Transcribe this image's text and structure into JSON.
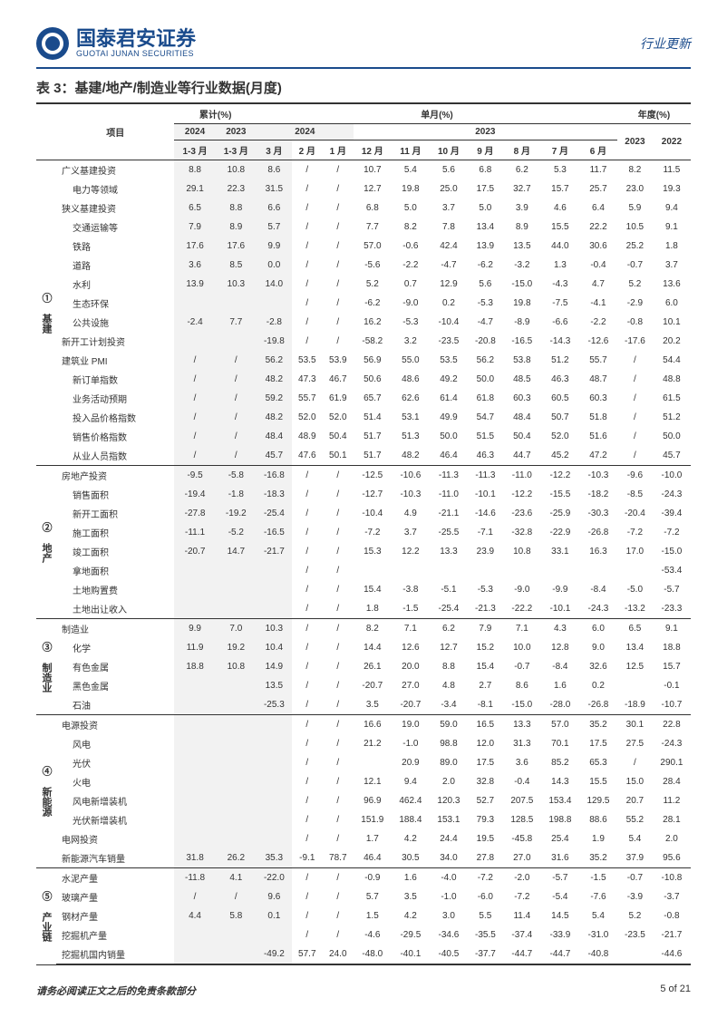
{
  "header": {
    "logo_cn": "国泰君安证券",
    "logo_en": "GUOTAI JUNAN SECURITIES",
    "doc_type": "行业更新"
  },
  "table_title": "表 3：基建/地产/制造业等行业数据(月度)",
  "columns": {
    "item": "项目",
    "cum": "累计(%)",
    "monthly": "单月(%)",
    "annual": "年度(%)",
    "y2024": "2024",
    "y2023": "2023",
    "y2022": "2022",
    "m1_3a": "1-3 月",
    "m1_3b": "1-3 月",
    "m3": "3 月",
    "m2": "2 月",
    "m1": "1 月",
    "m12": "12 月",
    "m11": "11 月",
    "m10": "10 月",
    "m9": "9 月",
    "m8": "8 月",
    "m7": "7 月",
    "m6": "6 月"
  },
  "sections": [
    {
      "num": "①",
      "name": "基建",
      "rows": [
        {
          "n": "广义基建投资",
          "v": [
            "8.8",
            "10.8",
            "8.6",
            "/",
            "/",
            "10.7",
            "5.4",
            "5.6",
            "6.8",
            "6.2",
            "5.3",
            "11.7",
            "8.2",
            "11.5"
          ]
        },
        {
          "n": "电力等领域",
          "indent": 1,
          "v": [
            "29.1",
            "22.3",
            "31.5",
            "/",
            "/",
            "12.7",
            "19.8",
            "25.0",
            "17.5",
            "32.7",
            "15.7",
            "25.7",
            "23.0",
            "19.3"
          ]
        },
        {
          "n": "狭义基建投资",
          "v": [
            "6.5",
            "8.8",
            "6.6",
            "/",
            "/",
            "6.8",
            "5.0",
            "3.7",
            "5.0",
            "3.9",
            "4.6",
            "6.4",
            "5.9",
            "9.4"
          ]
        },
        {
          "n": "交通运输等",
          "indent": 1,
          "v": [
            "7.9",
            "8.9",
            "5.7",
            "/",
            "/",
            "7.7",
            "8.2",
            "7.8",
            "13.4",
            "8.9",
            "15.5",
            "22.2",
            "10.5",
            "9.1"
          ]
        },
        {
          "n": "铁路",
          "indent": 1,
          "v": [
            "17.6",
            "17.6",
            "9.9",
            "/",
            "/",
            "57.0",
            "-0.6",
            "42.4",
            "13.9",
            "13.5",
            "44.0",
            "30.6",
            "25.2",
            "1.8"
          ]
        },
        {
          "n": "道路",
          "indent": 1,
          "v": [
            "3.6",
            "8.5",
            "0.0",
            "/",
            "/",
            "-5.6",
            "-2.2",
            "-4.7",
            "-6.2",
            "-3.2",
            "1.3",
            "-0.4",
            "-0.7",
            "3.7"
          ]
        },
        {
          "n": "水利",
          "indent": 1,
          "v": [
            "13.9",
            "10.3",
            "14.0",
            "/",
            "/",
            "5.2",
            "0.7",
            "12.9",
            "5.6",
            "-15.0",
            "-4.3",
            "4.7",
            "5.2",
            "13.6"
          ]
        },
        {
          "n": "生态环保",
          "indent": 1,
          "v": [
            "",
            "",
            "",
            "/",
            "/",
            "-6.2",
            "-9.0",
            "0.2",
            "-5.3",
            "19.8",
            "-7.5",
            "-4.1",
            "-2.9",
            "6.0"
          ]
        },
        {
          "n": "公共设施",
          "indent": 1,
          "v": [
            "-2.4",
            "7.7",
            "-2.8",
            "/",
            "/",
            "16.2",
            "-5.3",
            "-10.4",
            "-4.7",
            "-8.9",
            "-6.6",
            "-2.2",
            "-0.8",
            "10.1"
          ]
        },
        {
          "n": "新开工计划投资",
          "v": [
            "",
            "",
            "-19.8",
            "/",
            "/",
            "-58.2",
            "3.2",
            "-23.5",
            "-20.8",
            "-16.5",
            "-14.3",
            "-12.6",
            "-17.6",
            "20.2"
          ]
        },
        {
          "n": "建筑业 PMI",
          "v": [
            "/",
            "/",
            "56.2",
            "53.5",
            "53.9",
            "56.9",
            "55.0",
            "53.5",
            "56.2",
            "53.8",
            "51.2",
            "55.7",
            "/",
            "54.4"
          ]
        },
        {
          "n": "新订单指数",
          "indent": 1,
          "v": [
            "/",
            "/",
            "48.2",
            "47.3",
            "46.7",
            "50.6",
            "48.6",
            "49.2",
            "50.0",
            "48.5",
            "46.3",
            "48.7",
            "/",
            "48.8"
          ]
        },
        {
          "n": "业务活动预期",
          "indent": 1,
          "v": [
            "/",
            "/",
            "59.2",
            "55.7",
            "61.9",
            "65.7",
            "62.6",
            "61.4",
            "61.8",
            "60.3",
            "60.5",
            "60.3",
            "/",
            "61.5"
          ]
        },
        {
          "n": "投入品价格指数",
          "indent": 1,
          "v": [
            "/",
            "/",
            "48.2",
            "52.0",
            "52.0",
            "51.4",
            "53.1",
            "49.9",
            "54.7",
            "48.4",
            "50.7",
            "51.8",
            "/",
            "51.2"
          ]
        },
        {
          "n": "销售价格指数",
          "indent": 1,
          "v": [
            "/",
            "/",
            "48.4",
            "48.9",
            "50.4",
            "51.7",
            "51.3",
            "50.0",
            "51.5",
            "50.4",
            "52.0",
            "51.6",
            "/",
            "50.0"
          ]
        },
        {
          "n": "从业人员指数",
          "indent": 1,
          "v": [
            "/",
            "/",
            "45.7",
            "47.6",
            "50.1",
            "51.7",
            "48.2",
            "46.4",
            "46.3",
            "44.7",
            "45.2",
            "47.2",
            "/",
            "45.7"
          ]
        }
      ]
    },
    {
      "num": "②",
      "name": "地产",
      "rows": [
        {
          "n": "房地产投资",
          "v": [
            "-9.5",
            "-5.8",
            "-16.8",
            "/",
            "/",
            "-12.5",
            "-10.6",
            "-11.3",
            "-11.3",
            "-11.0",
            "-12.2",
            "-10.3",
            "-9.6",
            "-10.0"
          ]
        },
        {
          "n": "销售面积",
          "indent": 1,
          "v": [
            "-19.4",
            "-1.8",
            "-18.3",
            "/",
            "/",
            "-12.7",
            "-10.3",
            "-11.0",
            "-10.1",
            "-12.2",
            "-15.5",
            "-18.2",
            "-8.5",
            "-24.3"
          ]
        },
        {
          "n": "新开工面积",
          "indent": 1,
          "v": [
            "-27.8",
            "-19.2",
            "-25.4",
            "/",
            "/",
            "-10.4",
            "4.9",
            "-21.1",
            "-14.6",
            "-23.6",
            "-25.9",
            "-30.3",
            "-20.4",
            "-39.4"
          ]
        },
        {
          "n": "施工面积",
          "indent": 1,
          "v": [
            "-11.1",
            "-5.2",
            "-16.5",
            "/",
            "/",
            "-7.2",
            "3.7",
            "-25.5",
            "-7.1",
            "-32.8",
            "-22.9",
            "-26.8",
            "-7.2",
            "-7.2"
          ]
        },
        {
          "n": "竣工面积",
          "indent": 1,
          "v": [
            "-20.7",
            "14.7",
            "-21.7",
            "/",
            "/",
            "15.3",
            "12.2",
            "13.3",
            "23.9",
            "10.8",
            "33.1",
            "16.3",
            "17.0",
            "-15.0"
          ]
        },
        {
          "n": "拿地面积",
          "indent": 1,
          "v": [
            "",
            "",
            "",
            "/",
            "/",
            "",
            "",
            "",
            "",
            "",
            "",
            "",
            "",
            "-53.4"
          ]
        },
        {
          "n": "土地购置费",
          "indent": 1,
          "v": [
            "",
            "",
            "",
            "/",
            "/",
            "15.4",
            "-3.8",
            "-5.1",
            "-5.3",
            "-9.0",
            "-9.9",
            "-8.4",
            "-5.0",
            "-5.7"
          ]
        },
        {
          "n": "土地出让收入",
          "indent": 1,
          "v": [
            "",
            "",
            "",
            "/",
            "/",
            "1.8",
            "-1.5",
            "-25.4",
            "-21.3",
            "-22.2",
            "-10.1",
            "-24.3",
            "-13.2",
            "-23.3"
          ]
        }
      ]
    },
    {
      "num": "③",
      "name": "制造业",
      "rows": [
        {
          "n": "制造业",
          "v": [
            "9.9",
            "7.0",
            "10.3",
            "/",
            "/",
            "8.2",
            "7.1",
            "6.2",
            "7.9",
            "7.1",
            "4.3",
            "6.0",
            "6.5",
            "9.1"
          ]
        },
        {
          "n": "化学",
          "indent": 1,
          "v": [
            "11.9",
            "19.2",
            "10.4",
            "/",
            "/",
            "14.4",
            "12.6",
            "12.7",
            "15.2",
            "10.0",
            "12.8",
            "9.0",
            "13.4",
            "18.8"
          ]
        },
        {
          "n": "有色金属",
          "indent": 1,
          "v": [
            "18.8",
            "10.8",
            "14.9",
            "/",
            "/",
            "26.1",
            "20.0",
            "8.8",
            "15.4",
            "-0.7",
            "-8.4",
            "32.6",
            "12.5",
            "15.7"
          ]
        },
        {
          "n": "黑色金属",
          "indent": 1,
          "v": [
            "",
            "",
            "13.5",
            "/",
            "/",
            "-20.7",
            "27.0",
            "4.8",
            "2.7",
            "8.6",
            "1.6",
            "0.2",
            "",
            "-0.1"
          ]
        },
        {
          "n": "石油",
          "indent": 1,
          "v": [
            "",
            "",
            "-25.3",
            "/",
            "/",
            "3.5",
            "-20.7",
            "-3.4",
            "-8.1",
            "-15.0",
            "-28.0",
            "-26.8",
            "-18.9",
            "-10.7"
          ]
        }
      ]
    },
    {
      "num": "④",
      "name": "新能源",
      "rows": [
        {
          "n": "电源投资",
          "v": [
            "",
            "",
            "",
            "/",
            "/",
            "16.6",
            "19.0",
            "59.0",
            "16.5",
            "13.3",
            "57.0",
            "35.2",
            "30.1",
            "22.8"
          ]
        },
        {
          "n": "风电",
          "indent": 1,
          "v": [
            "",
            "",
            "",
            "/",
            "/",
            "21.2",
            "-1.0",
            "98.8",
            "12.0",
            "31.3",
            "70.1",
            "17.5",
            "27.5",
            "-24.3"
          ]
        },
        {
          "n": "光伏",
          "indent": 1,
          "v": [
            "",
            "",
            "",
            "/",
            "/",
            "",
            "20.9",
            "89.0",
            "17.5",
            "3.6",
            "85.2",
            "65.3",
            "/",
            "290.1"
          ]
        },
        {
          "n": "火电",
          "indent": 1,
          "v": [
            "",
            "",
            "",
            "/",
            "/",
            "12.1",
            "9.4",
            "2.0",
            "32.8",
            "-0.4",
            "14.3",
            "15.5",
            "15.0",
            "28.4"
          ]
        },
        {
          "n": "风电新增装机",
          "indent": 1,
          "v": [
            "",
            "",
            "",
            "/",
            "/",
            "96.9",
            "462.4",
            "120.3",
            "52.7",
            "207.5",
            "153.4",
            "129.5",
            "20.7",
            "11.2"
          ]
        },
        {
          "n": "光伏新增装机",
          "indent": 1,
          "v": [
            "",
            "",
            "",
            "/",
            "/",
            "151.9",
            "188.4",
            "153.1",
            "79.3",
            "128.5",
            "198.8",
            "88.6",
            "55.2",
            "28.1"
          ]
        },
        {
          "n": "电网投资",
          "v": [
            "",
            "",
            "",
            "/",
            "/",
            "1.7",
            "4.2",
            "24.4",
            "19.5",
            "-45.8",
            "25.4",
            "1.9",
            "5.4",
            "2.0"
          ]
        },
        {
          "n": "新能源汽车销量",
          "v": [
            "31.8",
            "26.2",
            "35.3",
            "-9.1",
            "78.7",
            "46.4",
            "30.5",
            "34.0",
            "27.8",
            "27.0",
            "31.6",
            "35.2",
            "37.9",
            "95.6"
          ]
        }
      ]
    },
    {
      "num": "⑤",
      "name": "产业链",
      "rows": [
        {
          "n": "水泥产量",
          "v": [
            "-11.8",
            "4.1",
            "-22.0",
            "/",
            "/",
            "-0.9",
            "1.6",
            "-4.0",
            "-7.2",
            "-2.0",
            "-5.7",
            "-1.5",
            "-0.7",
            "-10.8"
          ]
        },
        {
          "n": "玻璃产量",
          "v": [
            "/",
            "/",
            "9.6",
            "/",
            "/",
            "5.7",
            "3.5",
            "-1.0",
            "-6.0",
            "-7.2",
            "-5.4",
            "-7.6",
            "-3.9",
            "-3.7"
          ]
        },
        {
          "n": "钢材产量",
          "v": [
            "4.4",
            "5.8",
            "0.1",
            "/",
            "/",
            "1.5",
            "4.2",
            "3.0",
            "5.5",
            "11.4",
            "14.5",
            "5.4",
            "5.2",
            "-0.8"
          ]
        },
        {
          "n": "挖掘机产量",
          "v": [
            "",
            "",
            "",
            "/",
            "/",
            "-4.6",
            "-29.5",
            "-34.6",
            "-35.5",
            "-37.4",
            "-33.9",
            "-31.0",
            "-23.5",
            "-21.7"
          ]
        },
        {
          "n": "挖掘机国内销量",
          "v": [
            "",
            "",
            "-49.2",
            "57.7",
            "24.0",
            "-48.0",
            "-40.1",
            "-40.5",
            "-37.7",
            "-44.7",
            "-44.7",
            "-40.8",
            "",
            "-44.6"
          ]
        }
      ]
    }
  ],
  "footer": {
    "disclaimer": "请务必阅读正文之后的免责条款部分",
    "page": "5 of 21"
  }
}
